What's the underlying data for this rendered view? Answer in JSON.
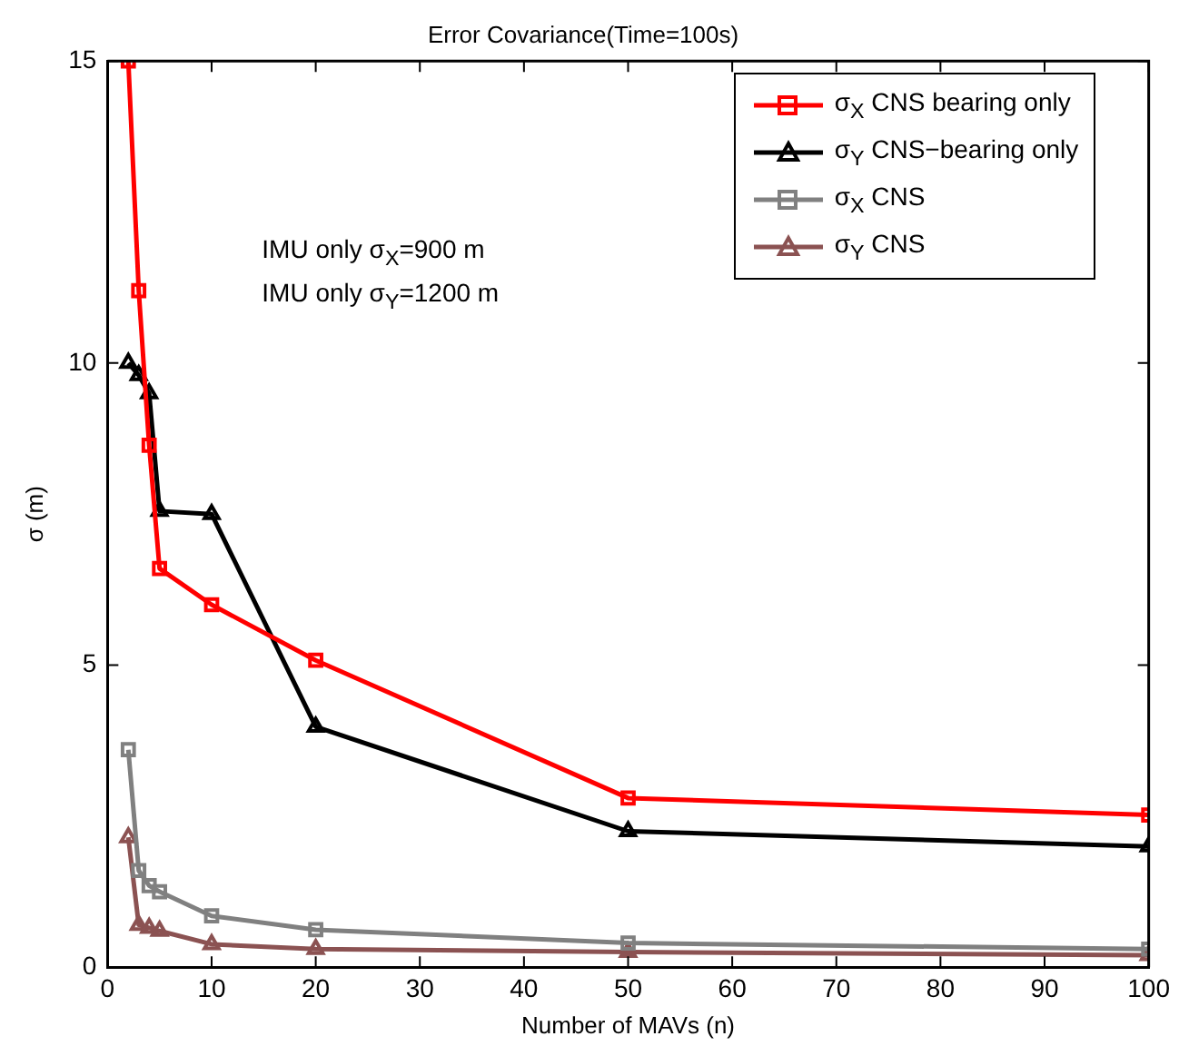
{
  "chart_data": {
    "type": "line",
    "title": "Error Covariance(Time=100s)",
    "xlabel": "Number of MAVs (n)",
    "ylabel": "σ (m)",
    "x": [
      2,
      3,
      4,
      5,
      10,
      20,
      50,
      100
    ],
    "series": [
      {
        "name": "σ$_{X}$ CNS bearing only",
        "color": "#ff0000",
        "marker": "square",
        "values": [
          15,
          11.2,
          8.64,
          6.6,
          6.0,
          5.08,
          2.8,
          2.52
        ]
      },
      {
        "name": "σ$_{Y}$ CNS−bearing only",
        "color": "#000000",
        "marker": "triangle",
        "values": [
          10.0,
          9.8,
          9.5,
          7.55,
          7.5,
          3.98,
          2.25,
          2.0
        ]
      },
      {
        "name": "σ$_{X}$  CNS",
        "color": "#808080",
        "marker": "square",
        "values": [
          3.6,
          1.6,
          1.35,
          1.25,
          0.85,
          0.62,
          0.4,
          0.3
        ]
      },
      {
        "name": "σ$_{Y}$ CNS",
        "color": "#8b5252",
        "marker": "triangle",
        "values": [
          2.15,
          0.7,
          0.65,
          0.6,
          0.38,
          0.3,
          0.25,
          0.2
        ]
      }
    ],
    "annotations": [
      "IMU only σ$_{X}$=900 m",
      "IMU only σ$_{Y}$=1200 m"
    ],
    "xlim": [
      0,
      100
    ],
    "xticks": [
      0,
      10,
      20,
      30,
      40,
      50,
      60,
      70,
      80,
      90,
      100
    ],
    "ylim": [
      0,
      15
    ],
    "yticks": [
      0,
      5,
      10,
      15
    ],
    "grid": false,
    "legend": "top right",
    "line_style": "solid"
  }
}
